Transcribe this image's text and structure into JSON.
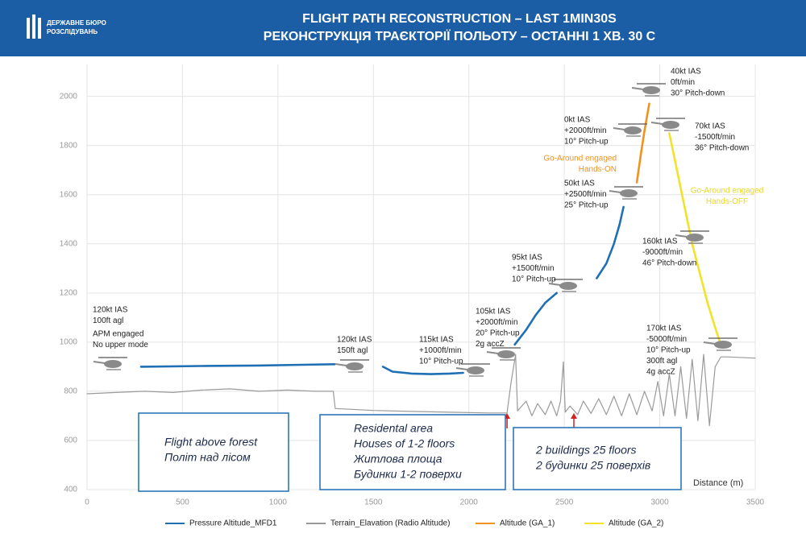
{
  "header": {
    "logo_lines": [
      "ДЕРЖАВНЕ БЮРО",
      "РОЗСЛІДУВАНЬ"
    ],
    "title_lines": [
      "FLIGHT PATH RECONSTRUCTION – LAST 1MIN30S",
      "РЕКОНСТРУКЦІЯ ТРАЄКТОРІЇ ПОЛЬОТУ – ОСТАННІ 1 ХВ. 30 С"
    ]
  },
  "chart_data": {
    "type": "line",
    "x_label": "Distance (m)",
    "xlim": [
      0,
      3500
    ],
    "xticks": [
      0,
      500,
      1000,
      1500,
      2000,
      2500,
      3000,
      3500
    ],
    "ylim": [
      400,
      2130
    ],
    "yticks": [
      400,
      600,
      800,
      1000,
      1200,
      1400,
      1600,
      1800,
      2000
    ],
    "grid": true,
    "series": [
      {
        "name": "Pressure Altitude_MFD1",
        "color": "#1f6fb5",
        "x": [
          283,
          600,
          900,
          1296,
          null,
          1550,
          1600,
          1700,
          1800,
          1900,
          1970,
          null,
          2240,
          2300,
          2350,
          2400,
          2460,
          null,
          2670,
          2720,
          2760,
          2790,
          2810
        ],
        "values": [
          900,
          903,
          905,
          910,
          null,
          900,
          880,
          872,
          870,
          872,
          875,
          null,
          990,
          1050,
          1110,
          1160,
          1200,
          null,
          1260,
          1320,
          1400,
          1480,
          1550
        ]
      },
      {
        "name": "Terrain_Elavation (Radio Altitude)",
        "color": "#9a9a9a",
        "x": [
          0,
          150,
          300,
          450,
          600,
          750,
          900,
          1050,
          1200,
          1290,
          1300,
          1500,
          1700,
          1900,
          2100,
          2200,
          2220,
          2245,
          2255,
          2300,
          2330,
          2360,
          2400,
          2430,
          2460,
          2480,
          2495,
          2505,
          2530,
          2570,
          2600,
          2640,
          2680,
          2720,
          2760,
          2800,
          2840,
          2880,
          2920,
          2960,
          2990,
          3020,
          3050,
          3080,
          3110,
          3140,
          3170,
          3200,
          3230,
          3260,
          3290,
          3320,
          3350,
          3500
        ],
        "values": [
          790,
          795,
          800,
          795,
          805,
          810,
          800,
          805,
          800,
          800,
          730,
          722,
          718,
          715,
          712,
          712,
          830,
          950,
          720,
          760,
          700,
          750,
          705,
          760,
          700,
          760,
          920,
          715,
          740,
          705,
          760,
          710,
          770,
          705,
          780,
          700,
          790,
          705,
          800,
          720,
          840,
          700,
          870,
          700,
          900,
          690,
          930,
          680,
          950,
          660,
          900,
          940,
          940,
          935
        ]
      },
      {
        "name": "Altitude (GA_1)",
        "color": "#f0921e",
        "x": [
          2880,
          2900,
          2920,
          2945
        ],
        "values": [
          1650,
          1760,
          1860,
          1970
        ]
      },
      {
        "name": "Altitude (GA_2)",
        "color": "#f2e22a",
        "x": [
          3050,
          3090,
          3130,
          3170,
          3210,
          3250,
          3290,
          3315
        ],
        "values": [
          1850,
          1700,
          1550,
          1400,
          1280,
          1160,
          1060,
          1000
        ]
      }
    ],
    "annotations": [
      {
        "lines": [
          "120kt IAS",
          "100ft agl"
        ]
      },
      {
        "lines": [
          "APM engaged",
          "No upper mode"
        ]
      },
      {
        "lines": [
          "120kt IAS",
          "150ft agl"
        ]
      },
      {
        "lines": [
          "115kt IAS",
          "+1000ft/min",
          "10° Pitch-up"
        ]
      },
      {
        "lines": [
          "105kt IAS",
          "+2000ft/min",
          "20° Pitch-up",
          "2g accZ"
        ]
      },
      {
        "lines": [
          "95kt IAS",
          "+1500ft/min",
          "10° Pitch-up"
        ]
      },
      {
        "lines": [
          "50kt IAS",
          "+2500ft/min",
          "25° Pitch-up"
        ]
      },
      {
        "lines": [
          "0kt IAS",
          "+2000ft/min",
          "10° Pitch-up"
        ]
      },
      {
        "lines": [
          "Go-Around engaged",
          "Hands-ON"
        ],
        "color": "#f0921e"
      },
      {
        "lines": [
          "40kt IAS",
          "0ft/min",
          "30° Pitch-down"
        ]
      },
      {
        "lines": [
          "70kt IAS",
          "-1500ft/min",
          "36° Pitch-down"
        ]
      },
      {
        "lines": [
          "Go-Around engaged",
          "Hands-OFF"
        ],
        "color": "#e8d81c"
      },
      {
        "lines": [
          "160kt IAS",
          "-9000ft/min",
          "46° Pitch-down"
        ]
      },
      {
        "lines": [
          "170kt IAS",
          "-5000ft/min",
          "10° Pitch-up",
          "300ft agl",
          "4g accZ"
        ]
      }
    ],
    "boxes": [
      {
        "lines": [
          "Flight above forest",
          "Політ над лісом"
        ]
      },
      {
        "lines": [
          "Residental area",
          "Houses of 1-2 floors",
          "Житлова площа",
          "Будинки 1-2 поверхи"
        ]
      },
      {
        "lines": [
          "2 buildings 25 floors",
          "2 будинки 25 поверхів"
        ]
      }
    ]
  }
}
